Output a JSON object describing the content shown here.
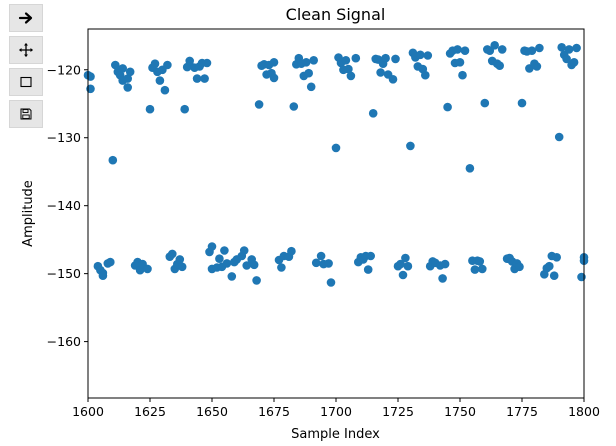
{
  "toolbar": {
    "buttons": [
      {
        "name": "forward-button",
        "icon": "arrow-right-icon"
      },
      {
        "name": "pan-button",
        "icon": "move-arrows-icon"
      },
      {
        "name": "zoom-rect-button",
        "icon": "rectangle-icon"
      },
      {
        "name": "save-button",
        "icon": "floppy-disk-icon"
      }
    ]
  },
  "chart_data": {
    "type": "scatter",
    "title": "Clean Signal",
    "xlabel": "Sample Index",
    "ylabel": "Amplitude",
    "xlim": [
      1600,
      1800
    ],
    "ylim": [
      -168.3,
      -114.0
    ],
    "xticks": [
      1600,
      1625,
      1650,
      1675,
      1700,
      1725,
      1750,
      1775,
      1800
    ],
    "yticks": [
      -120,
      -130,
      -140,
      -150,
      -160
    ],
    "marker_color": "#1f77b4",
    "grid": false,
    "legend": "none",
    "points": [
      [
        1600,
        -120.8
      ],
      [
        1601,
        -122.8
      ],
      [
        1601,
        -121.0
      ],
      [
        1604,
        -148.9
      ],
      [
        1605,
        -149.5
      ],
      [
        1606,
        -149.9
      ],
      [
        1606,
        -150.3
      ],
      [
        1608,
        -148.5
      ],
      [
        1609,
        -148.3
      ],
      [
        1610,
        -133.3
      ],
      [
        1611,
        -119.3
      ],
      [
        1612,
        -120.3
      ],
      [
        1613,
        -120.8
      ],
      [
        1614,
        -119.8
      ],
      [
        1614,
        -121.6
      ],
      [
        1616,
        -121.3
      ],
      [
        1616,
        -122.6
      ],
      [
        1617,
        -120.3
      ],
      [
        1619,
        -148.8
      ],
      [
        1620,
        -148.3
      ],
      [
        1621,
        -149.5
      ],
      [
        1622,
        -148.6
      ],
      [
        1624,
        -149.3
      ],
      [
        1625,
        -125.8
      ],
      [
        1626,
        -119.7
      ],
      [
        1627,
        -119.1
      ],
      [
        1628,
        -120.3
      ],
      [
        1629,
        -121.6
      ],
      [
        1630,
        -120.0
      ],
      [
        1631,
        -123.0
      ],
      [
        1632,
        -119.3
      ],
      [
        1633,
        -147.5
      ],
      [
        1634,
        -147.1
      ],
      [
        1635,
        -149.3
      ],
      [
        1636,
        -148.6
      ],
      [
        1637,
        -147.9
      ],
      [
        1638,
        -149.0
      ],
      [
        1639,
        -125.8
      ],
      [
        1640,
        -119.6
      ],
      [
        1641,
        -119.3
      ],
      [
        1641,
        -118.7
      ],
      [
        1643,
        -119.7
      ],
      [
        1644,
        -121.3
      ],
      [
        1645,
        -119.5
      ],
      [
        1646,
        -119.0
      ],
      [
        1647,
        -121.3
      ],
      [
        1648,
        -119.0
      ],
      [
        1649,
        -146.8
      ],
      [
        1650,
        -146.0
      ],
      [
        1650,
        -149.3
      ],
      [
        1652,
        -149.1
      ],
      [
        1653,
        -147.8
      ],
      [
        1654,
        -149.0
      ],
      [
        1655,
        -146.6
      ],
      [
        1656,
        -148.5
      ],
      [
        1658,
        -150.4
      ],
      [
        1659,
        -148.3
      ],
      [
        1660,
        -147.9
      ],
      [
        1662,
        -147.4
      ],
      [
        1663,
        -146.6
      ],
      [
        1664,
        -148.8
      ],
      [
        1666,
        -147.9
      ],
      [
        1667,
        -148.7
      ],
      [
        1668,
        -151.0
      ],
      [
        1669,
        -125.1
      ],
      [
        1670,
        -119.4
      ],
      [
        1671,
        -119.2
      ],
      [
        1672,
        -120.7
      ],
      [
        1673,
        -119.3
      ],
      [
        1674,
        -120.5
      ],
      [
        1675,
        -121.2
      ],
      [
        1675,
        -118.9
      ],
      [
        1677,
        -148.0
      ],
      [
        1678,
        -149.1
      ],
      [
        1679,
        -147.4
      ],
      [
        1681,
        -147.5
      ],
      [
        1682,
        -146.7
      ],
      [
        1683,
        -125.4
      ],
      [
        1684,
        -119.2
      ],
      [
        1685,
        -118.3
      ],
      [
        1686,
        -119.1
      ],
      [
        1687,
        -120.9
      ],
      [
        1688,
        -118.9
      ],
      [
        1689,
        -120.5
      ],
      [
        1690,
        -122.5
      ],
      [
        1691,
        -118.6
      ],
      [
        1692,
        -148.4
      ],
      [
        1694,
        -147.4
      ],
      [
        1695,
        -148.6
      ],
      [
        1697,
        -148.5
      ],
      [
        1698,
        -151.3
      ],
      [
        1700,
        -131.5
      ],
      [
        1701,
        -118.2
      ],
      [
        1702,
        -119.0
      ],
      [
        1703,
        -120.0
      ],
      [
        1704,
        -118.6
      ],
      [
        1705,
        -119.9
      ],
      [
        1706,
        -120.9
      ],
      [
        1708,
        -118.3
      ],
      [
        1709,
        -148.3
      ],
      [
        1710,
        -147.6
      ],
      [
        1711,
        -147.9
      ],
      [
        1712,
        -147.4
      ],
      [
        1713,
        -149.4
      ],
      [
        1714,
        -147.4
      ],
      [
        1715,
        -126.4
      ],
      [
        1716,
        -118.4
      ],
      [
        1717,
        -118.5
      ],
      [
        1718,
        -120.4
      ],
      [
        1719,
        -119.1
      ],
      [
        1720,
        -118.3
      ],
      [
        1721,
        -120.7
      ],
      [
        1723,
        -121.4
      ],
      [
        1724,
        -118.4
      ],
      [
        1725,
        -148.9
      ],
      [
        1726,
        -148.6
      ],
      [
        1727,
        -150.2
      ],
      [
        1728,
        -147.7
      ],
      [
        1729,
        -148.9
      ],
      [
        1730,
        -131.2
      ],
      [
        1731,
        -117.5
      ],
      [
        1732,
        -118.2
      ],
      [
        1733,
        -119.5
      ],
      [
        1734,
        -117.8
      ],
      [
        1735,
        -119.9
      ],
      [
        1736,
        -120.8
      ],
      [
        1737,
        -117.9
      ],
      [
        1738,
        -148.9
      ],
      [
        1739,
        -148.2
      ],
      [
        1740,
        -148.4
      ],
      [
        1742,
        -148.8
      ],
      [
        1743,
        -150.7
      ],
      [
        1744,
        -148.6
      ],
      [
        1745,
        -125.5
      ],
      [
        1746,
        -117.6
      ],
      [
        1747,
        -117.2
      ],
      [
        1748,
        -119.0
      ],
      [
        1749,
        -117.0
      ],
      [
        1750,
        -118.9
      ],
      [
        1751,
        -120.8
      ],
      [
        1752,
        -117.2
      ],
      [
        1754,
        -134.5
      ],
      [
        1755,
        -148.1
      ],
      [
        1756,
        -149.4
      ],
      [
        1757,
        -148.1
      ],
      [
        1758,
        -148.2
      ],
      [
        1759,
        -149.3
      ],
      [
        1760,
        -124.9
      ],
      [
        1761,
        -117.0
      ],
      [
        1762,
        -117.2
      ],
      [
        1763,
        -118.7
      ],
      [
        1764,
        -116.4
      ],
      [
        1765,
        -119.1
      ],
      [
        1766,
        -119.4
      ],
      [
        1767,
        -117.0
      ],
      [
        1769,
        -147.8
      ],
      [
        1770,
        -147.7
      ],
      [
        1771,
        -148.2
      ],
      [
        1772,
        -149.3
      ],
      [
        1773,
        -148.5
      ],
      [
        1774,
        -149.0
      ],
      [
        1775,
        -124.9
      ],
      [
        1776,
        -117.2
      ],
      [
        1777,
        -117.3
      ],
      [
        1778,
        -119.8
      ],
      [
        1779,
        -117.2
      ],
      [
        1780,
        -119.1
      ],
      [
        1781,
        -119.5
      ],
      [
        1782,
        -116.8
      ],
      [
        1784,
        -150.1
      ],
      [
        1785,
        -149.2
      ],
      [
        1786,
        -148.9
      ],
      [
        1787,
        -147.4
      ],
      [
        1788,
        -150.3
      ],
      [
        1789,
        -147.6
      ],
      [
        1790,
        -129.9
      ],
      [
        1791,
        -116.7
      ],
      [
        1792,
        -117.8
      ],
      [
        1793,
        -118.4
      ],
      [
        1794,
        -117.0
      ],
      [
        1795,
        -119.3
      ],
      [
        1796,
        -118.9
      ],
      [
        1797,
        -116.8
      ],
      [
        1799,
        -150.5
      ],
      [
        1800,
        -147.6
      ],
      [
        1800,
        -148.1
      ]
    ]
  }
}
